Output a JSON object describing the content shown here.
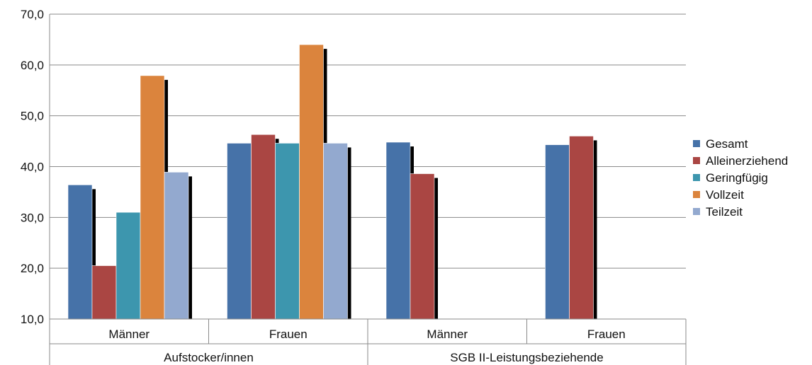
{
  "chart_data": {
    "type": "bar",
    "title": "",
    "xlabel": "",
    "ylabel": "",
    "ylim": [
      10,
      70
    ],
    "yticks": [
      "10,0",
      "20,0",
      "30,0",
      "40,0",
      "50,0",
      "60,0",
      "70,0"
    ],
    "ytick_values": [
      10,
      20,
      30,
      40,
      50,
      60,
      70
    ],
    "grid": true,
    "legend_position": "right",
    "groups": [
      {
        "label": "Aufstocker/innen",
        "categories": [
          "Männer",
          "Frauen"
        ]
      },
      {
        "label": "SGB II-Leistungsbeziehende",
        "categories": [
          "Männer",
          "Frauen"
        ]
      }
    ],
    "categories": [
      "Männer",
      "Frauen",
      "Männer",
      "Frauen"
    ],
    "series": [
      {
        "name": "Gesamt",
        "color": "#4672a8",
        "values": [
          36.4,
          44.6,
          44.8,
          44.3
        ]
      },
      {
        "name": "Alleinerziehend",
        "color": "#aa4643",
        "values": [
          20.5,
          46.3,
          38.6,
          46.0
        ]
      },
      {
        "name": "Geringfügig",
        "color": "#3d96ae",
        "values": [
          31.0,
          44.6,
          null,
          null
        ]
      },
      {
        "name": "Vollzeit",
        "color": "#db843d",
        "values": [
          57.9,
          64.0,
          null,
          null
        ]
      },
      {
        "name": "Teilzeit",
        "color": "#93a9cf",
        "values": [
          38.9,
          44.6,
          null,
          null
        ]
      }
    ]
  }
}
